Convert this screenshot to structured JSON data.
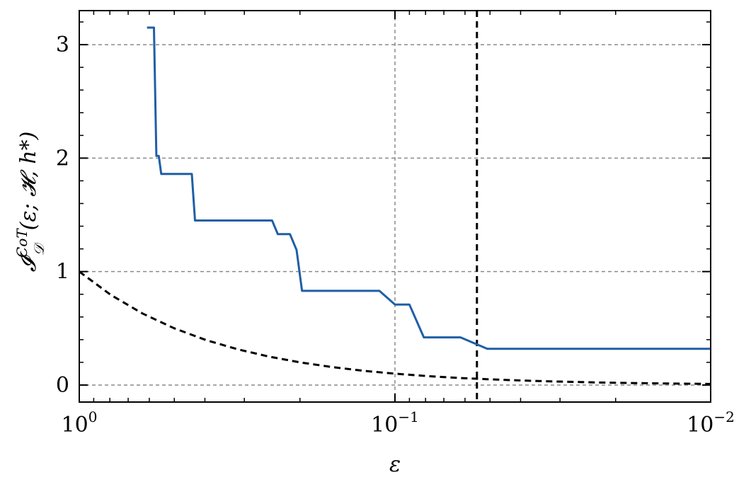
{
  "chart_data": {
    "type": "line",
    "title": "",
    "xlabel": "ε",
    "ylabel_parts": {
      "main": "𝓘",
      "superscript": "CoT",
      "subscript": "𝒟",
      "args": "(ε; 𝓗, h*)"
    },
    "x_scale": "log",
    "x_reversed": true,
    "xlim": [
      1.0,
      0.01
    ],
    "ylim": [
      -0.15,
      3.3
    ],
    "x_ticks": [
      {
        "value": 1.0,
        "base": "10",
        "exp": "0"
      },
      {
        "value": 0.1,
        "base": "10",
        "exp": "−1"
      },
      {
        "value": 0.01,
        "base": "10",
        "exp": "−2"
      }
    ],
    "y_ticks": [
      {
        "value": 0,
        "label": "0"
      },
      {
        "value": 1,
        "label": "1"
      },
      {
        "value": 2,
        "label": "2"
      },
      {
        "value": 3,
        "label": "3"
      }
    ],
    "grid": true,
    "reference_vline": {
      "x": 0.055,
      "style": "dashed",
      "color": "#000000"
    },
    "series": [
      {
        "style": "solid",
        "color": "#1f5fa6",
        "points": [
          [
            0.61,
            3.15
          ],
          [
            0.58,
            3.15
          ],
          [
            0.57,
            2.02
          ],
          [
            0.56,
            2.02
          ],
          [
            0.55,
            1.86
          ],
          [
            0.44,
            1.86
          ],
          [
            0.43,
            1.45
          ],
          [
            0.245,
            1.45
          ],
          [
            0.235,
            1.33
          ],
          [
            0.215,
            1.33
          ],
          [
            0.205,
            1.19
          ],
          [
            0.197,
            0.83
          ],
          [
            0.112,
            0.83
          ],
          [
            0.1,
            0.71
          ],
          [
            0.09,
            0.71
          ],
          [
            0.081,
            0.42
          ],
          [
            0.062,
            0.42
          ],
          [
            0.051,
            0.32
          ],
          [
            0.01,
            0.32
          ]
        ]
      },
      {
        "style": "dashed",
        "color": "#000000",
        "points": [
          [
            1.0,
            1.0
          ],
          [
            0.794,
            0.794
          ],
          [
            0.631,
            0.631
          ],
          [
            0.501,
            0.501
          ],
          [
            0.398,
            0.398
          ],
          [
            0.316,
            0.316
          ],
          [
            0.251,
            0.251
          ],
          [
            0.2,
            0.2
          ],
          [
            0.158,
            0.158
          ],
          [
            0.126,
            0.126
          ],
          [
            0.1,
            0.1
          ],
          [
            0.079,
            0.079
          ],
          [
            0.063,
            0.063
          ],
          [
            0.05,
            0.05
          ],
          [
            0.04,
            0.04
          ],
          [
            0.032,
            0.032
          ],
          [
            0.025,
            0.025
          ],
          [
            0.02,
            0.02
          ],
          [
            0.016,
            0.016
          ],
          [
            0.013,
            0.013
          ],
          [
            0.01,
            0.01
          ]
        ]
      }
    ]
  }
}
